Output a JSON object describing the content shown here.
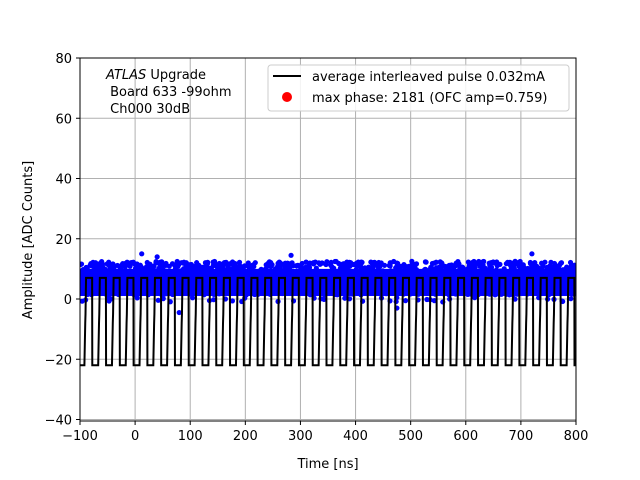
{
  "chart_data": {
    "type": "line",
    "xlabel": "Time [ns]",
    "ylabel": "Amplitude [ADC Counts]",
    "xlim": [
      -100,
      800
    ],
    "ylim": [
      -42,
      80
    ],
    "xticks": [
      "-100",
      "0",
      "100",
      "200",
      "300",
      "400",
      "500",
      "600",
      "700",
      "800"
    ],
    "yticks": [
      "-40",
      "-20",
      "0",
      "20",
      "40",
      "60",
      "80"
    ],
    "grid": true,
    "legend_placement": "top-right",
    "annotation": {
      "line1_italic": "ATLAS",
      "line1_rest": " Upgrade",
      "line2": " Board 633 -99ohm",
      "line3": " Ch000 30dB"
    },
    "series": [
      {
        "name": "average interleaved pulse 0.032mA",
        "kind": "line",
        "color": "#000000",
        "pattern": "square-wave",
        "period_ns": 25,
        "first_rise_ns": -89,
        "high_level": 7,
        "low_level": -22,
        "high_duration_ns": 11
      },
      {
        "name": "max phase: 2181 (OFC amp=0.759)",
        "kind": "scatter",
        "color": "#ff0000"
      },
      {
        "kind": "scatter",
        "color": "#0000ff",
        "band_range": [
          -1,
          12.5
        ],
        "outliers": [
          [
            80,
            -4.5
          ],
          [
            475,
            -3
          ],
          [
            283,
            14.5
          ],
          [
            40,
            14
          ],
          [
            720,
            15
          ],
          [
            12,
            15
          ]
        ]
      }
    ]
  }
}
